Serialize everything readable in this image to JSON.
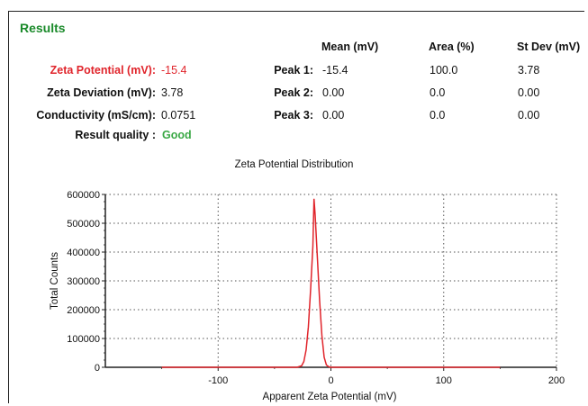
{
  "results": {
    "heading": "Results",
    "summary": [
      {
        "label": "Zeta Potential (mV):",
        "value": "-15.4",
        "style": "red"
      },
      {
        "label": "Zeta Deviation (mV):",
        "value": "3.78",
        "style": "normal"
      },
      {
        "label": "Conductivity (mS/cm):",
        "value": "0.0751",
        "style": "normal"
      },
      {
        "label": "Result quality :",
        "value": "Good",
        "style": "good"
      }
    ],
    "peak_table": {
      "columns": [
        "Mean (mV)",
        "Area (%)",
        "St Dev (mV)"
      ],
      "rows": [
        {
          "label": "Peak 1:",
          "mean": "-15.4",
          "area": "100.0",
          "stdev": "3.78"
        },
        {
          "label": "Peak 2:",
          "mean": "0.00",
          "area": "0.0",
          "stdev": "0.00"
        },
        {
          "label": "Peak 3:",
          "mean": "0.00",
          "area": "0.0",
          "stdev": "0.00"
        }
      ]
    }
  },
  "chart_data": {
    "type": "line",
    "title": "Zeta Potential Distribution",
    "xlabel": "Apparent Zeta Potential (mV)",
    "ylabel": "Total Counts",
    "xlim": [
      -200,
      200
    ],
    "ylim": [
      0,
      600000
    ],
    "xticks": [
      -100,
      0,
      100,
      200
    ],
    "yticks": [
      0,
      100000,
      200000,
      300000,
      400000,
      500000,
      600000
    ],
    "grid": "dotted",
    "line_color": "#e0242b",
    "series": [
      {
        "x": [
          -150,
          -30,
          -26,
          -24,
          -22,
          -20,
          -18,
          -16,
          -15,
          -14,
          -12,
          -10,
          -8,
          -6,
          -4,
          -2,
          0,
          150
        ],
        "y": [
          0,
          0,
          5000,
          20000,
          60000,
          140000,
          270000,
          420000,
          585000,
          530000,
          380000,
          230000,
          110000,
          35000,
          8000,
          2000,
          0,
          0
        ]
      }
    ]
  }
}
